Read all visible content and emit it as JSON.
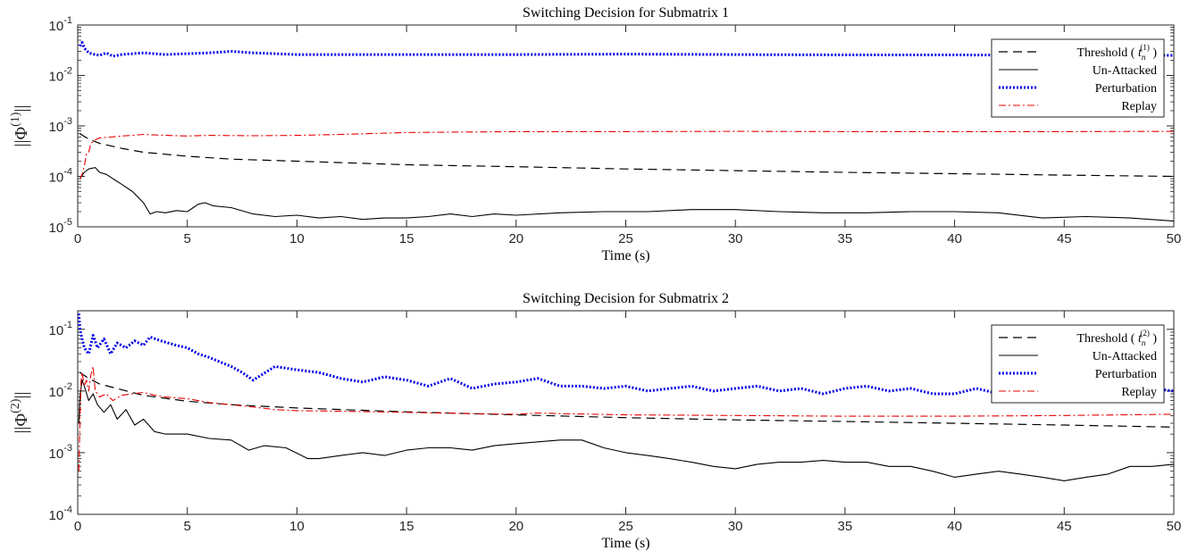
{
  "chart_data": [
    {
      "type": "line",
      "title": "Switching Decision for Submatrix 1",
      "xlabel": "Time (s)",
      "ylabel": "||Φ(1)||",
      "ylabel_parts": {
        "pre": "||Φ",
        "sup": "(1)",
        "post": "||"
      },
      "xlim": [
        0,
        50
      ],
      "ylim": [
        1e-05,
        0.1
      ],
      "yscale": "log",
      "xticks": [
        "0",
        "5",
        "10",
        "15",
        "20",
        "25",
        "30",
        "35",
        "40",
        "45",
        "50"
      ],
      "yticks": [
        {
          "base": "10",
          "exp": "-5",
          "value": 1e-05
        },
        {
          "base": "10",
          "exp": "-4",
          "value": 0.0001
        },
        {
          "base": "10",
          "exp": "-3",
          "value": 0.001
        },
        {
          "base": "10",
          "exp": "-2",
          "value": 0.01
        },
        {
          "base": "10",
          "exp": "-1",
          "value": 0.1
        }
      ],
      "legend_position": "top-right",
      "series": [
        {
          "name": "Threshold ( t_n^(1) )",
          "legend": {
            "text": "Threshold ( ",
            "var": "t",
            "sub": "n",
            "sup": "(1)",
            "close": " )"
          },
          "color": "#000000",
          "dash": "10,6",
          "width": 1.2,
          "x": [
            0.1,
            0.5,
            1,
            2,
            3,
            5,
            7,
            10,
            15,
            20,
            25,
            30,
            35,
            40,
            45,
            50
          ],
          "y": [
            0.0007,
            0.00055,
            0.00045,
            0.00036,
            0.0003,
            0.00025,
            0.00022,
            0.0002,
            0.00017,
            0.000155,
            0.00014,
            0.00013,
            0.00012,
            0.000113,
            0.000106,
            0.0001
          ]
        },
        {
          "name": "Un-Attacked",
          "color": "#000000",
          "dash": "",
          "width": 1.1,
          "x": [
            0.1,
            0.3,
            0.5,
            0.8,
            1,
            1.3,
            1.6,
            2,
            2.5,
            3,
            3.3,
            3.6,
            4,
            4.5,
            5,
            5.5,
            5.8,
            6.2,
            7,
            8,
            9,
            10,
            11,
            12,
            13,
            14,
            15,
            16,
            17,
            18,
            19,
            20,
            22,
            24,
            26,
            28,
            30,
            32,
            34,
            36,
            38,
            40,
            42,
            44,
            46,
            48,
            50
          ],
          "y": [
            9e-05,
            0.00012,
            0.00014,
            0.00015,
            0.00012,
            0.00011,
            9e-05,
            7e-05,
            5e-05,
            3e-05,
            1.8e-05,
            2e-05,
            1.9e-05,
            2.1e-05,
            2e-05,
            2.8e-05,
            3e-05,
            2.6e-05,
            2.4e-05,
            1.8e-05,
            1.6e-05,
            1.7e-05,
            1.5e-05,
            1.6e-05,
            1.4e-05,
            1.5e-05,
            1.5e-05,
            1.6e-05,
            1.8e-05,
            1.6e-05,
            1.8e-05,
            1.7e-05,
            1.9e-05,
            2e-05,
            2e-05,
            2.2e-05,
            2.2e-05,
            2e-05,
            1.9e-05,
            1.9e-05,
            2e-05,
            2e-05,
            1.9e-05,
            1.5e-05,
            1.6e-05,
            1.5e-05,
            1.3e-05
          ]
        },
        {
          "name": "Perturbation",
          "color": "#0000e6",
          "dash": "2,2",
          "width": 3,
          "x": [
            0.1,
            0.2,
            0.3,
            0.5,
            0.8,
            1,
            1.3,
            1.6,
            2,
            2.5,
            3,
            4,
            5,
            6,
            7,
            8,
            9,
            10,
            12,
            15,
            18,
            20,
            25,
            30,
            35,
            40,
            45,
            50
          ],
          "y": [
            0.038,
            0.045,
            0.035,
            0.028,
            0.026,
            0.025,
            0.028,
            0.024,
            0.026,
            0.027,
            0.028,
            0.026,
            0.027,
            0.028,
            0.03,
            0.028,
            0.027,
            0.026,
            0.026,
            0.026,
            0.026,
            0.026,
            0.0265,
            0.026,
            0.0255,
            0.0255,
            0.025,
            0.025
          ]
        },
        {
          "name": "Replay",
          "color": "#e60000",
          "dash": "8,3,2,3",
          "width": 1.1,
          "x": [
            0.1,
            0.2,
            0.3,
            0.4,
            0.5,
            0.6,
            0.8,
            1,
            1.5,
            2,
            2.5,
            3,
            4,
            5,
            6,
            8,
            10,
            12,
            15,
            20,
            25,
            30,
            35,
            40,
            45,
            50
          ],
          "y": [
            9e-05,
            0.00011,
            0.00016,
            0.00028,
            0.0003,
            0.00045,
            0.00053,
            0.00058,
            0.0006,
            0.00063,
            0.00065,
            0.00068,
            0.00065,
            0.00063,
            0.00065,
            0.00064,
            0.00065,
            0.00068,
            0.00074,
            0.00077,
            0.00077,
            0.00078,
            0.00077,
            0.00077,
            0.00077,
            0.00078
          ]
        }
      ]
    },
    {
      "type": "line",
      "title": "Switching Decision for Submatrix 2",
      "xlabel": "Time (s)",
      "ylabel": "||Φ(2)||",
      "ylabel_parts": {
        "pre": "||Φ",
        "sup": "(2)",
        "post": "||"
      },
      "xlim": [
        0,
        50
      ],
      "ylim": [
        0.0001,
        0.2
      ],
      "yscale": "log",
      "xticks": [
        "0",
        "5",
        "10",
        "15",
        "20",
        "25",
        "30",
        "35",
        "40",
        "45",
        "50"
      ],
      "yticks": [
        {
          "base": "10",
          "exp": "-4",
          "value": 0.0001
        },
        {
          "base": "10",
          "exp": "-3",
          "value": 0.001
        },
        {
          "base": "10",
          "exp": "-2",
          "value": 0.01
        },
        {
          "base": "10",
          "exp": "-1",
          "value": 0.1
        }
      ],
      "legend_position": "top-right",
      "series": [
        {
          "name": "Threshold ( t_n^(2) )",
          "legend": {
            "text": "Threshold ( ",
            "var": "t",
            "sub": "n",
            "sup": "(2)",
            "close": " )"
          },
          "color": "#000000",
          "dash": "10,6",
          "width": 1.2,
          "x": [
            0.1,
            0.5,
            1,
            2,
            3,
            5,
            7,
            10,
            15,
            20,
            25,
            30,
            35,
            40,
            45,
            50
          ],
          "y": [
            0.02,
            0.016,
            0.013,
            0.0105,
            0.0085,
            0.0068,
            0.006,
            0.0053,
            0.0046,
            0.0041,
            0.0037,
            0.0034,
            0.0032,
            0.003,
            0.0028,
            0.0026
          ]
        },
        {
          "name": "Un-Attacked",
          "color": "#000000",
          "dash": "",
          "width": 1.1,
          "x": [
            0.05,
            0.1,
            0.2,
            0.3,
            0.5,
            0.7,
            0.9,
            1.2,
            1.5,
            1.8,
            2.2,
            2.6,
            3,
            3.5,
            4,
            5,
            6,
            7,
            7.8,
            8.5,
            9.5,
            10.5,
            11,
            12,
            13,
            14,
            15,
            16,
            17,
            18,
            19,
            20,
            21,
            22,
            23,
            24,
            25,
            26,
            27,
            28,
            29,
            30,
            31,
            32,
            33,
            34,
            35,
            36,
            37,
            38,
            39,
            40,
            41,
            42,
            43,
            44,
            45,
            46,
            47,
            48,
            49,
            50
          ],
          "y": [
            0.003,
            0.008,
            0.015,
            0.012,
            0.007,
            0.009,
            0.006,
            0.0045,
            0.006,
            0.0035,
            0.005,
            0.0028,
            0.0035,
            0.0022,
            0.002,
            0.002,
            0.0017,
            0.0016,
            0.0011,
            0.0013,
            0.0012,
            0.0008,
            0.0008,
            0.0009,
            0.001,
            0.0009,
            0.0011,
            0.0012,
            0.0012,
            0.0011,
            0.0013,
            0.0014,
            0.0015,
            0.0016,
            0.0016,
            0.0012,
            0.001,
            0.0009,
            0.0008,
            0.0007,
            0.0006,
            0.00055,
            0.00065,
            0.0007,
            0.0007,
            0.00075,
            0.0007,
            0.0007,
            0.0006,
            0.0006,
            0.0005,
            0.0004,
            0.00045,
            0.0005,
            0.00045,
            0.0004,
            0.00035,
            0.0004,
            0.00045,
            0.0006,
            0.0006,
            0.00065
          ]
        },
        {
          "name": "Perturbation",
          "color": "#0000e6",
          "dash": "2,2",
          "width": 3,
          "x": [
            0.05,
            0.1,
            0.2,
            0.3,
            0.5,
            0.7,
            0.9,
            1.2,
            1.5,
            1.8,
            2.2,
            2.6,
            3,
            3.3,
            3.8,
            4.5,
            5,
            5.5,
            6,
            7,
            7.5,
            8,
            9,
            10,
            11,
            12,
            13,
            14,
            15,
            16,
            17,
            18,
            19,
            20,
            21,
            22,
            23,
            24,
            25,
            26,
            27,
            28,
            29,
            30,
            31,
            32,
            33,
            34,
            35,
            36,
            37,
            38,
            39,
            40,
            41,
            42,
            43,
            44,
            45,
            46,
            47,
            48,
            49,
            50
          ],
          "y": [
            0.18,
            0.1,
            0.07,
            0.05,
            0.04,
            0.08,
            0.05,
            0.07,
            0.04,
            0.06,
            0.05,
            0.065,
            0.055,
            0.075,
            0.065,
            0.055,
            0.05,
            0.04,
            0.035,
            0.025,
            0.02,
            0.015,
            0.025,
            0.022,
            0.02,
            0.016,
            0.014,
            0.017,
            0.015,
            0.012,
            0.016,
            0.011,
            0.013,
            0.014,
            0.016,
            0.012,
            0.012,
            0.011,
            0.012,
            0.01,
            0.011,
            0.012,
            0.01,
            0.011,
            0.012,
            0.01,
            0.011,
            0.009,
            0.011,
            0.012,
            0.01,
            0.011,
            0.009,
            0.009,
            0.011,
            0.009,
            0.01,
            0.01,
            0.011,
            0.01,
            0.011,
            0.012,
            0.011,
            0.01
          ]
        },
        {
          "name": "Replay",
          "color": "#e60000",
          "dash": "8,3,2,3",
          "width": 1.1,
          "x": [
            0.05,
            0.1,
            0.15,
            0.2,
            0.3,
            0.4,
            0.5,
            0.6,
            0.7,
            0.8,
            1,
            1.3,
            1.6,
            2,
            2.5,
            3,
            3.5,
            4,
            5,
            6,
            7,
            8,
            9,
            10,
            12,
            15,
            18,
            20,
            21,
            22,
            25,
            30,
            35,
            40,
            45,
            50
          ],
          "y": [
            0.0005,
            0.003,
            0.014,
            0.02,
            0.012,
            0.015,
            0.01,
            0.018,
            0.025,
            0.01,
            0.008,
            0.009,
            0.007,
            0.0085,
            0.009,
            0.0095,
            0.0085,
            0.008,
            0.0075,
            0.0065,
            0.006,
            0.0055,
            0.005,
            0.0048,
            0.0047,
            0.0045,
            0.0043,
            0.0042,
            0.0044,
            0.0043,
            0.0041,
            0.004,
            0.0039,
            0.0039,
            0.004,
            0.0042
          ]
        }
      ]
    }
  ]
}
